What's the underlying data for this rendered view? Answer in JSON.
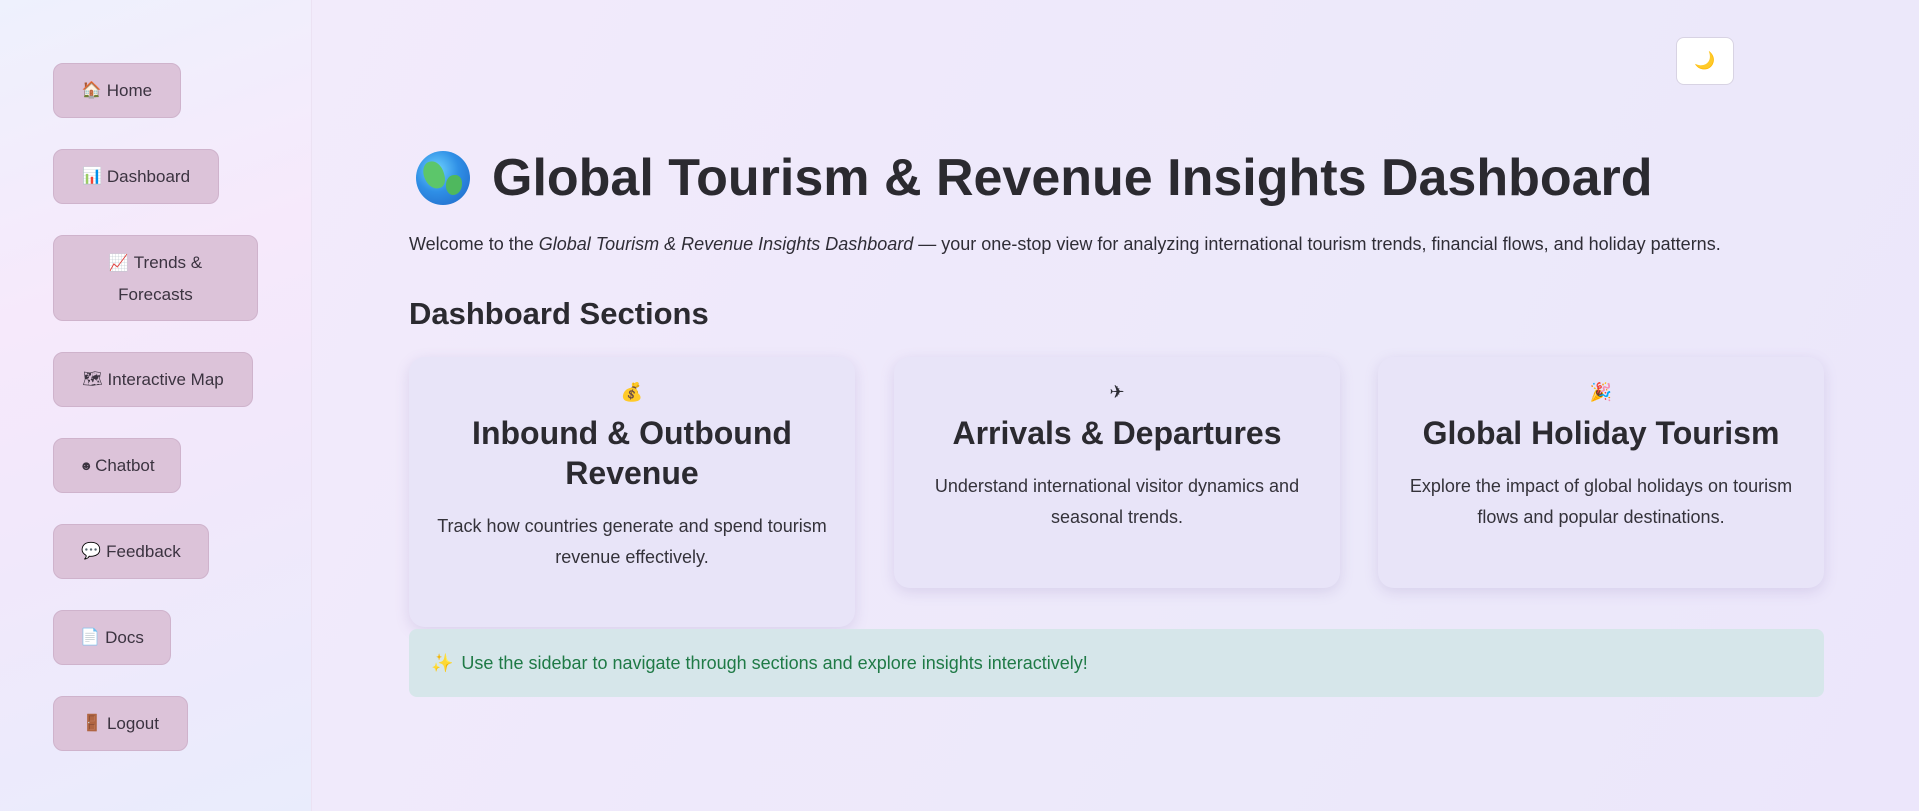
{
  "sidebar": {
    "items": [
      {
        "icon": "🏠",
        "icon_name": "house-icon",
        "label": "Home"
      },
      {
        "icon": "📊",
        "icon_name": "bar-chart-icon",
        "label": "Dashboard"
      },
      {
        "icon": "📈",
        "icon_name": "trend-chart-icon",
        "label": "Trends & Forecasts"
      },
      {
        "icon": "🗺",
        "icon_name": "world-map-icon",
        "label": "Interactive Map"
      },
      {
        "icon": "☻",
        "icon_name": "chatbot-icon",
        "label": "Chatbot"
      },
      {
        "icon": "💬",
        "icon_name": "speech-bubble-icon",
        "label": "Feedback"
      },
      {
        "icon": "📄",
        "icon_name": "document-icon",
        "label": "Docs"
      },
      {
        "icon": "🚪",
        "icon_name": "door-icon",
        "label": "Logout"
      }
    ]
  },
  "theme_toggle": {
    "icon": "🌙",
    "icon_name": "moon-icon"
  },
  "header": {
    "title_icon_name": "globe-icon",
    "title": "Global Tourism & Revenue Insights Dashboard",
    "intro_prefix": "Welcome to the ",
    "intro_emphasis": "Global Tourism & Revenue Insights Dashboard",
    "intro_suffix": " — your one-stop view for analyzing international tourism trends, financial flows, and holiday patterns."
  },
  "sections": {
    "heading": "Dashboard Sections",
    "cards": [
      {
        "icon": "💰",
        "icon_name": "money-bag-icon",
        "title": "Inbound & Outbound Revenue",
        "description": "Track how countries generate and spend tourism revenue effectively."
      },
      {
        "icon": "✈",
        "icon_name": "airplane-icon",
        "title": "Arrivals & Departures",
        "description": "Understand international visitor dynamics and seasonal trends."
      },
      {
        "icon": "🎉",
        "icon_name": "party-popper-icon",
        "title": "Global Holiday Tourism",
        "description": "Explore the impact of global holidays on tourism flows and popular destinations."
      }
    ]
  },
  "info_banner": {
    "icon": "✨",
    "icon_name": "sparkles-icon",
    "text": "Use the sidebar to navigate through sections and explore insights interactively!"
  }
}
